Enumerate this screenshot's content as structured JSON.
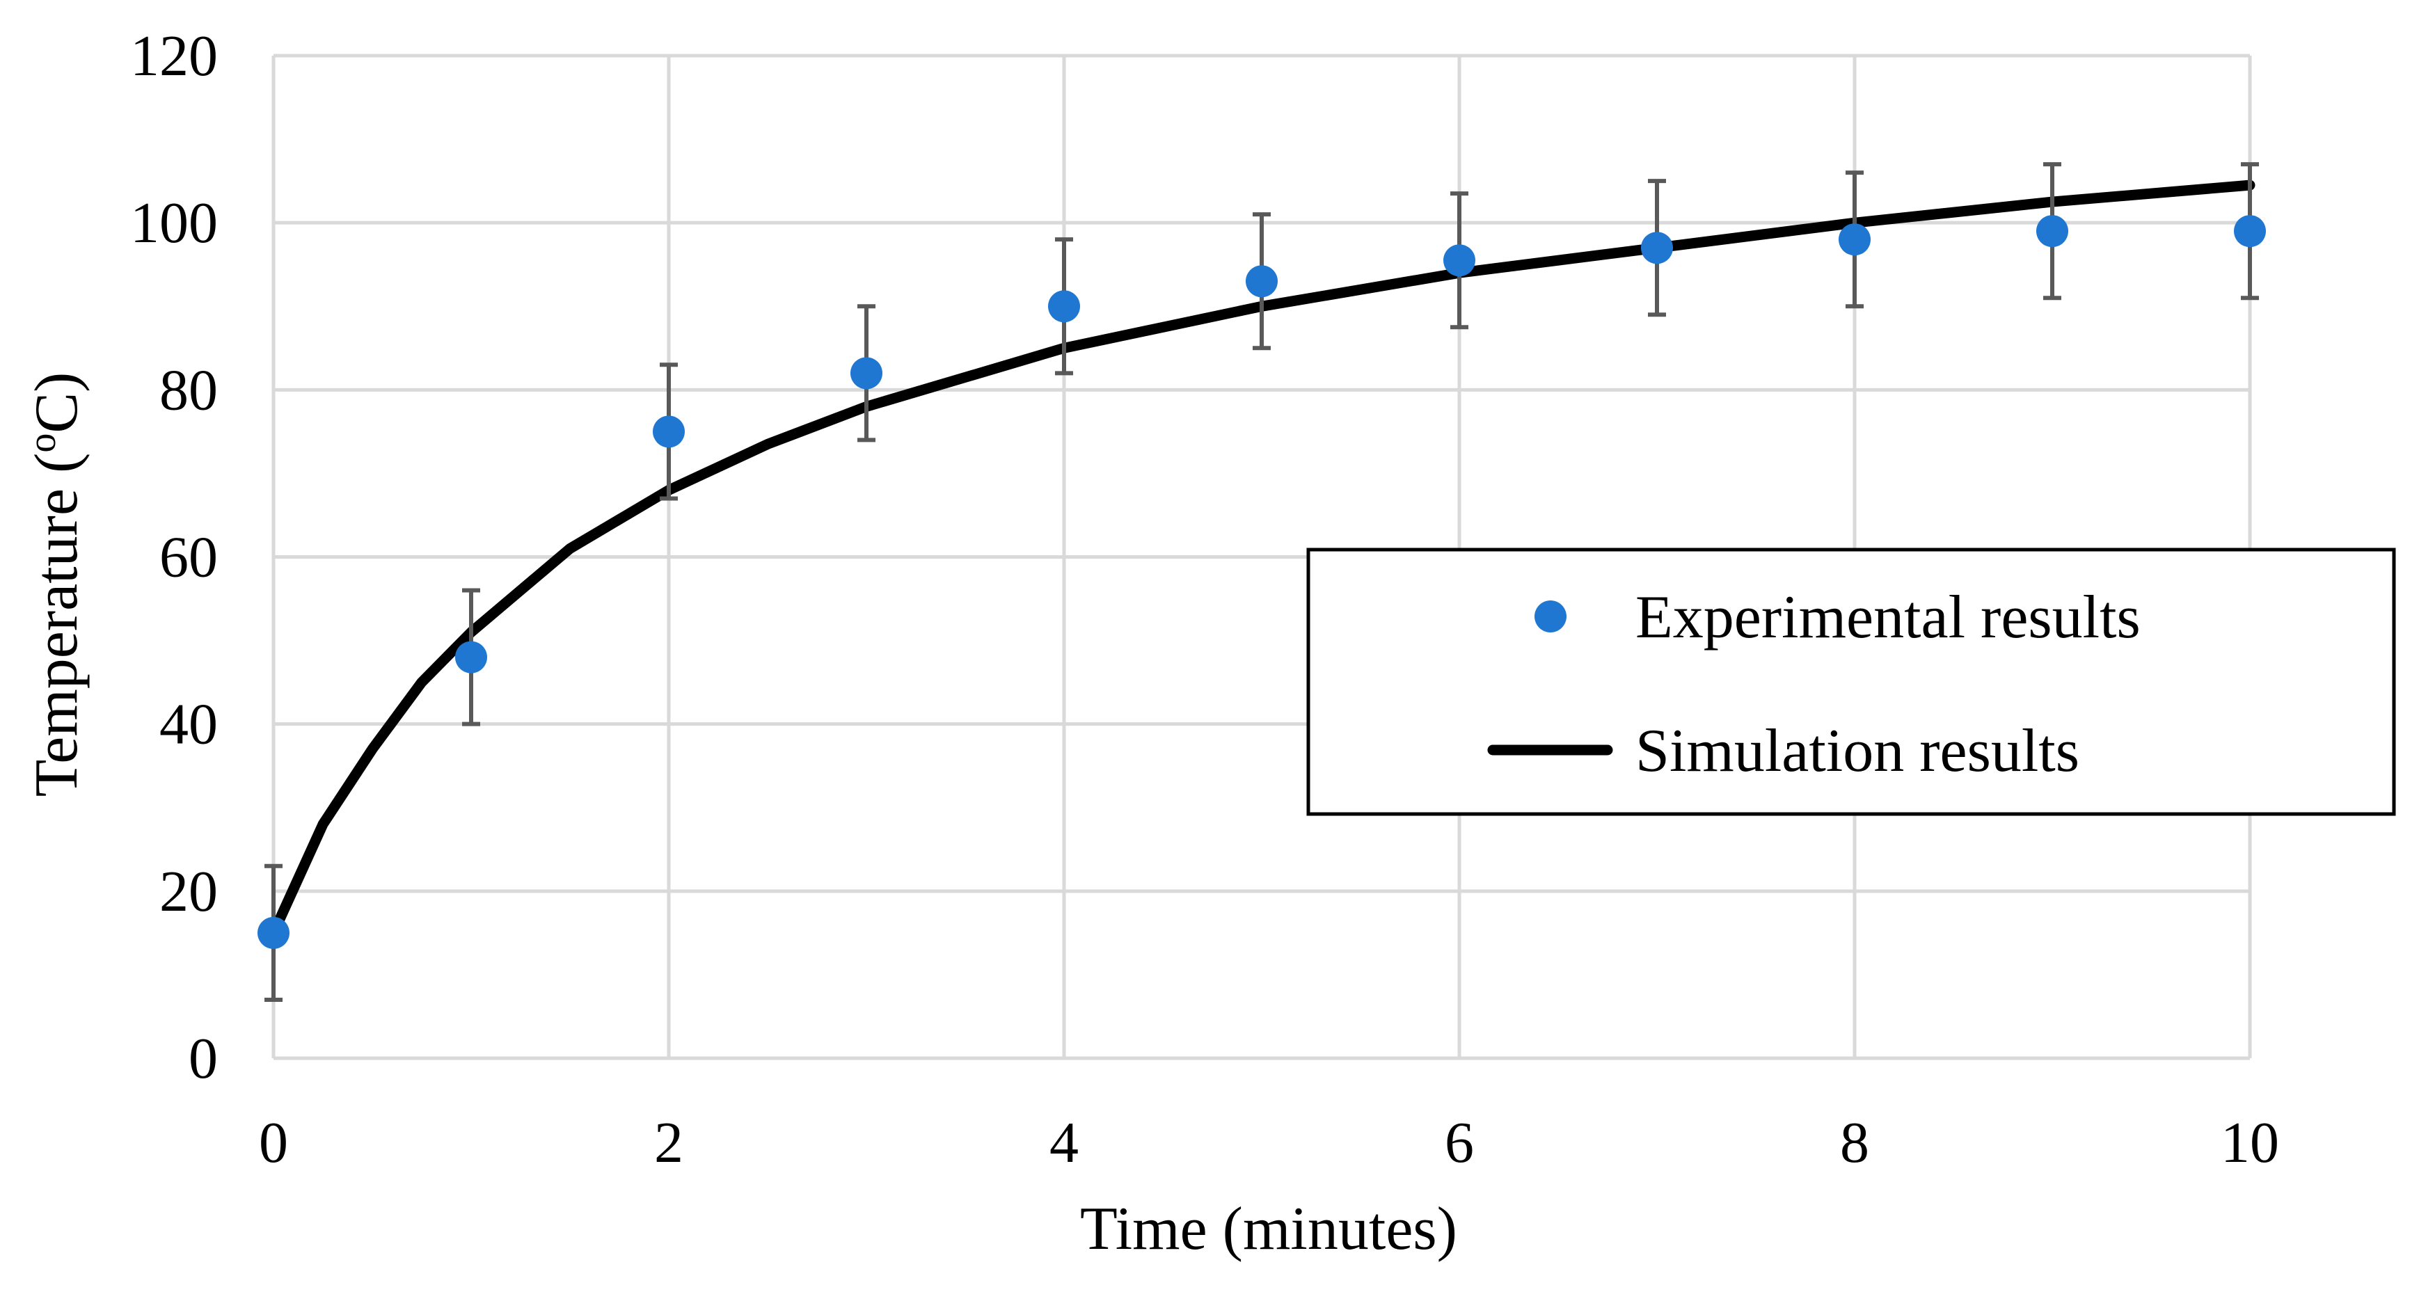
{
  "chart_data": {
    "type": "scatter",
    "title": "",
    "xlabel": "Time (minutes)",
    "ylabel_prefix": "Temperature (",
    "ylabel_sup": "o",
    "ylabel_suffix": "C)",
    "xlim": [
      0,
      10
    ],
    "ylim": [
      0,
      120
    ],
    "xticks": [
      0,
      2,
      4,
      6,
      8,
      10
    ],
    "yticks": [
      0,
      20,
      40,
      60,
      80,
      100,
      120
    ],
    "grid": true,
    "legend_position": "right",
    "series": [
      {
        "name": "Experimental results",
        "kind": "scatter",
        "color": "#1f77d2",
        "x": [
          0,
          1,
          2,
          3,
          4,
          5,
          6,
          7,
          8,
          9,
          10
        ],
        "y": [
          15,
          48,
          75,
          82,
          90,
          93,
          95.5,
          97,
          98,
          99,
          99
        ],
        "error": [
          8,
          8,
          8,
          8,
          8,
          8,
          8,
          8,
          8,
          8,
          8
        ],
        "error_color": "#595959"
      },
      {
        "name": "Simulation results",
        "kind": "line",
        "color": "#000000",
        "x": [
          0,
          0.25,
          0.5,
          0.75,
          1,
          1.5,
          2,
          2.5,
          3,
          4,
          5,
          6,
          7,
          8,
          9,
          10
        ],
        "y": [
          15,
          28,
          37,
          45,
          51,
          61,
          68,
          73.5,
          78,
          85,
          90,
          94,
          97,
          100,
          102.5,
          104.5
        ]
      }
    ]
  }
}
